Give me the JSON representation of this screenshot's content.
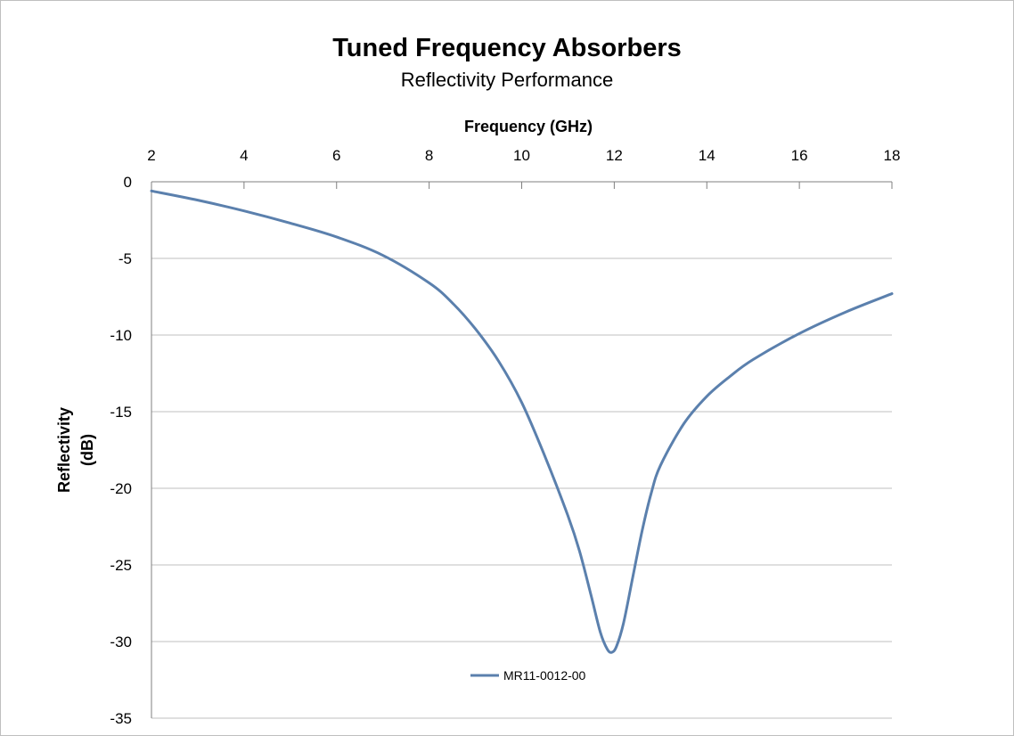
{
  "chart_data": {
    "type": "line",
    "title": "Tuned Frequency Absorbers",
    "subtitle": "Reflectivity Performance",
    "xlabel": "Frequency (GHz)",
    "ylabel_lines": [
      "Reflectivity",
      "(dB)"
    ],
    "xlim": [
      2,
      18
    ],
    "ylim": [
      -35,
      0
    ],
    "xticks": [
      2,
      4,
      6,
      8,
      10,
      12,
      14,
      16,
      18
    ],
    "yticks": [
      0,
      -5,
      -10,
      -15,
      -20,
      -25,
      -30,
      -35
    ],
    "ytick_labels": [
      "0",
      "-5",
      "-10",
      "-15",
      "-20",
      "-25",
      "-30",
      "-35"
    ],
    "x_axis_position": "top",
    "grid": "horizontal",
    "legend_position": "bottom-center",
    "series": [
      {
        "name": "MR11-0012-00",
        "color": "#5b80ad",
        "x": [
          2,
          3,
          4,
          5,
          6,
          7,
          8,
          8.5,
          9,
          9.5,
          10,
          10.5,
          11,
          11.25,
          11.5,
          11.7,
          11.85,
          11.95,
          12.05,
          12.2,
          12.4,
          12.6,
          12.8,
          13,
          13.5,
          14,
          14.5,
          15,
          16,
          17,
          18
        ],
        "y": [
          -0.6,
          -1.2,
          -1.9,
          -2.7,
          -3.6,
          -4.8,
          -6.6,
          -7.9,
          -9.6,
          -11.7,
          -14.4,
          -17.9,
          -21.8,
          -24.1,
          -27.0,
          -29.4,
          -30.5,
          -30.7,
          -30.3,
          -28.8,
          -25.8,
          -22.8,
          -20.3,
          -18.5,
          -15.8,
          -14.0,
          -12.7,
          -11.6,
          -9.9,
          -8.5,
          -7.3
        ]
      }
    ]
  }
}
